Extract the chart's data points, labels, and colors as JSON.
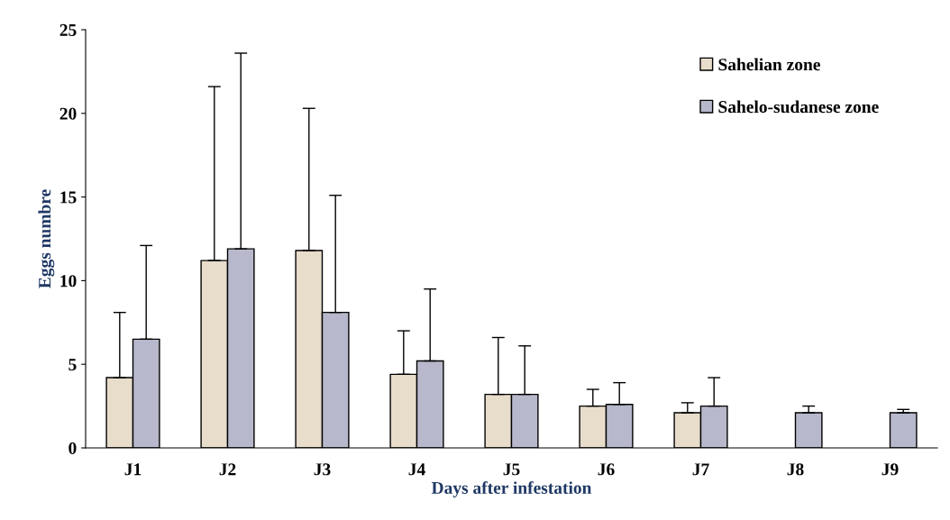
{
  "chart_data": {
    "type": "bar",
    "xlabel": "Days after infestation",
    "ylabel": "Eggs numbre",
    "categories": [
      "J1",
      "J2",
      "J3",
      "J4",
      "J5",
      "J6",
      "J7",
      "J8",
      "J9"
    ],
    "series": [
      {
        "name": "Sahelian zone",
        "color": "#e8dccb",
        "values": [
          4.2,
          11.2,
          11.8,
          4.4,
          3.2,
          2.5,
          2.1,
          null,
          null
        ],
        "errors": [
          [
            4.2,
            8.1
          ],
          [
            11.2,
            21.6
          ],
          [
            11.8,
            20.3
          ],
          [
            4.4,
            7.0
          ],
          [
            3.2,
            6.6
          ],
          [
            2.5,
            3.5
          ],
          [
            2.1,
            2.7
          ],
          null,
          null
        ]
      },
      {
        "name": "Sahelo-sudanese zone",
        "color": "#b8b8cc",
        "values": [
          6.5,
          11.9,
          8.1,
          5.2,
          3.2,
          2.6,
          2.5,
          2.1,
          2.1
        ],
        "errors": [
          [
            6.5,
            12.1
          ],
          [
            11.9,
            23.6
          ],
          [
            8.1,
            15.1
          ],
          [
            5.2,
            9.5
          ],
          [
            3.2,
            6.1
          ],
          [
            2.6,
            3.9
          ],
          [
            2.5,
            4.2
          ],
          [
            2.1,
            2.5
          ],
          [
            2.1,
            2.3
          ]
        ]
      }
    ],
    "ylim": [
      0,
      25
    ],
    "yticks": [
      0,
      5,
      10,
      15,
      20,
      25
    ],
    "grid": false,
    "legend": "top right"
  }
}
